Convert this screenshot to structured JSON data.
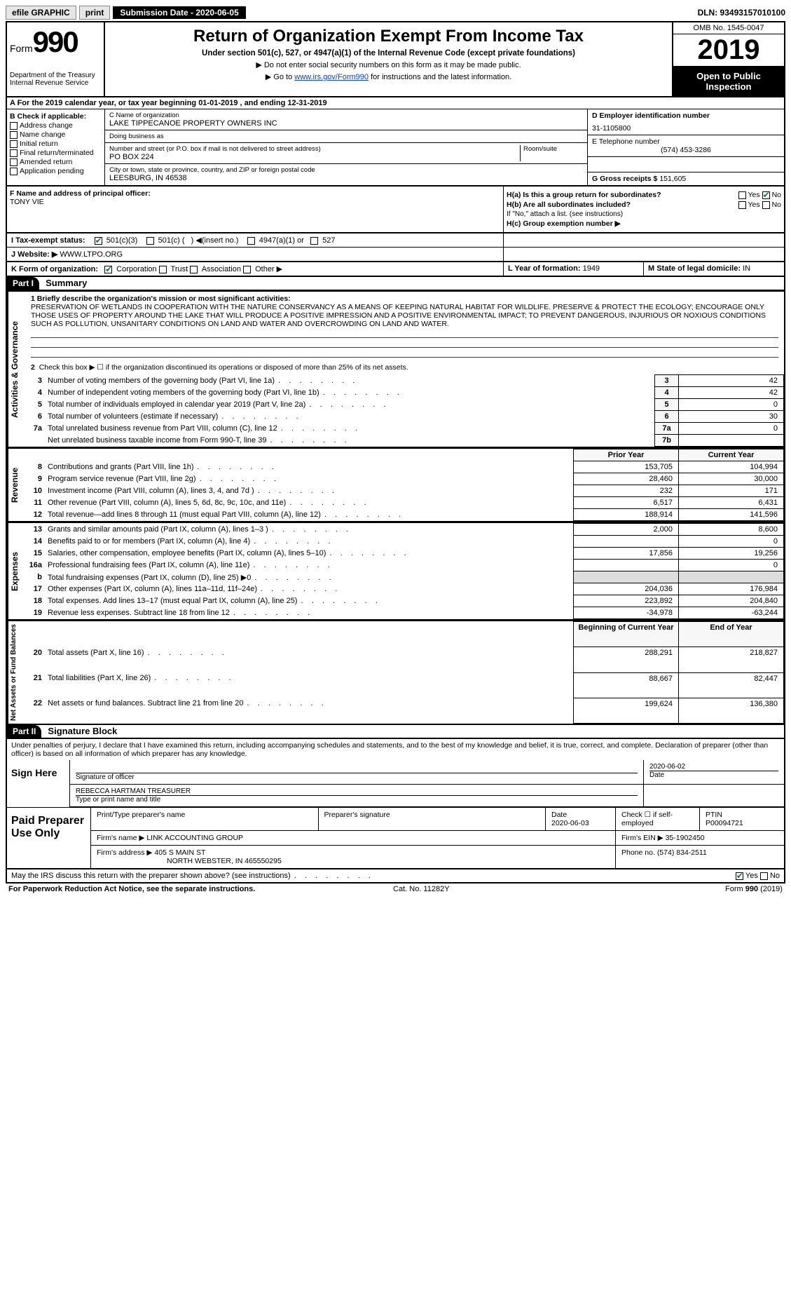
{
  "topbar": {
    "efile": "efile GRAPHIC",
    "print": "print",
    "submission": "Submission Date - 2020-06-05",
    "dln": "DLN: 93493157010100"
  },
  "header": {
    "form_prefix": "Form",
    "form_no": "990",
    "dept": "Department of the Treasury\nInternal Revenue Service",
    "title": "Return of Organization Exempt From Income Tax",
    "sub": "Under section 501(c), 527, or 4947(a)(1) of the Internal Revenue Code (except private foundations)",
    "note1": "▶ Do not enter social security numbers on this form as it may be made public.",
    "note2_pre": "▶ Go to ",
    "note2_link": "www.irs.gov/Form990",
    "note2_post": " for instructions and the latest information.",
    "omb": "OMB No. 1545-0047",
    "year": "2019",
    "open": "Open to Public Inspection"
  },
  "row_a": "A For the 2019 calendar year, or tax year beginning 01-01-2019    , and ending 12-31-2019",
  "col_b": {
    "hdr": "B Check if applicable:",
    "opts": [
      "Address change",
      "Name change",
      "Initial return",
      "Final return/terminated",
      "Amended return",
      "Application pending"
    ]
  },
  "col_c": {
    "name_lbl": "C Name of organization",
    "name": "LAKE TIPPECANOE PROPERTY OWNERS INC",
    "dba_lbl": "Doing business as",
    "dba": "",
    "addr_lbl": "Number and street (or P.O. box if mail is not delivered to street address)",
    "room_lbl": "Room/suite",
    "addr": "PO BOX 224",
    "city_lbl": "City or town, state or province, country, and ZIP or foreign postal code",
    "city": "LEESBURG, IN  46538"
  },
  "col_d": {
    "ein_lbl": "D Employer identification number",
    "ein": "31-1105800",
    "tel_lbl": "E Telephone number",
    "tel": "(574) 453-3286",
    "gross_lbl": "G Gross receipts $",
    "gross": "151,605"
  },
  "row_f": {
    "lbl": "F  Name and address of principal officer:",
    "name": "TONY VIE"
  },
  "row_h": {
    "a": "H(a)  Is this a group return for subordinates?",
    "a_yes": "Yes",
    "a_no_checked": true,
    "no_lbl": "No",
    "b": "H(b)  Are all subordinates included?",
    "b_note": "If \"No,\" attach a list. (see instructions)",
    "c": "H(c)  Group exemption number ▶"
  },
  "row_i": {
    "lbl": "I   Tax-exempt status:",
    "c3_checked": true,
    "opts": "501(c)(3)      501(c) (   ) ◀(insert no.)      4947(a)(1) or      527"
  },
  "row_j": {
    "lbl": "J   Website: ▶",
    "val": "WWW.LTPO.ORG"
  },
  "row_k": {
    "lbl": "K Form of organization:",
    "corp_checked": true,
    "opts": "Corporation      Trust      Association      Other ▶",
    "l_lbl": "L Year of formation:",
    "l_val": "1949",
    "m_lbl": "M State of legal domicile:",
    "m_val": "IN"
  },
  "parts": {
    "i": "Part I",
    "i_title": "Summary",
    "ii": "Part II",
    "ii_title": "Signature Block"
  },
  "summary": {
    "line1_lbl": "1  Briefly describe the organization's mission or most significant activities:",
    "mission": "PRESERVATION OF WETLANDS IN COOPERATION WITH THE NATURE CONSERVANCY AS A MEANS OF KEEPING NATURAL HABITAT FOR WILDLIFE. PRESERVE & PROTECT THE ECOLOGY; ENCOURAGE ONLY THOSE USES OF PROPERTY AROUND THE LAKE THAT WILL PRODUCE A POSITIVE IMPRESSION AND A POSITIVE ENVIRONMENTAL IMPACT; TO PREVENT DANGEROUS, INJURIOUS OR NOXIOUS CONDITIONS SUCH AS POLLUTION, UNSANITARY CONDITIONS ON LAND AND WATER AND OVERCROWDING ON LAND AND WATER.",
    "line2": "Check this box ▶ ☐  if the organization discontinued its operations or disposed of more than 25% of its net assets.",
    "governance_rows": [
      {
        "n": "3",
        "t": "Number of voting members of the governing body (Part VI, line 1a)",
        "box": "3",
        "v": "42"
      },
      {
        "n": "4",
        "t": "Number of independent voting members of the governing body (Part VI, line 1b)",
        "box": "4",
        "v": "42"
      },
      {
        "n": "5",
        "t": "Total number of individuals employed in calendar year 2019 (Part V, line 2a)",
        "box": "5",
        "v": "0"
      },
      {
        "n": "6",
        "t": "Total number of volunteers (estimate if necessary)",
        "box": "6",
        "v": "30"
      },
      {
        "n": "7a",
        "t": "Total unrelated business revenue from Part VIII, column (C), line 12",
        "box": "7a",
        "v": "0"
      },
      {
        "n": "",
        "t": "Net unrelated business taxable income from Form 990-T, line 39",
        "box": "7b",
        "v": ""
      }
    ],
    "col_hdrs": {
      "prior": "Prior Year",
      "current": "Current Year"
    },
    "revenue_rows": [
      {
        "n": "8",
        "t": "Contributions and grants (Part VIII, line 1h)",
        "p": "153,705",
        "c": "104,994"
      },
      {
        "n": "9",
        "t": "Program service revenue (Part VIII, line 2g)",
        "p": "28,460",
        "c": "30,000"
      },
      {
        "n": "10",
        "t": "Investment income (Part VIII, column (A), lines 3, 4, and 7d )",
        "p": "232",
        "c": "171"
      },
      {
        "n": "11",
        "t": "Other revenue (Part VIII, column (A), lines 5, 6d, 8c, 9c, 10c, and 11e)",
        "p": "6,517",
        "c": "6,431"
      },
      {
        "n": "12",
        "t": "Total revenue—add lines 8 through 11 (must equal Part VIII, column (A), line 12)",
        "p": "188,914",
        "c": "141,596"
      }
    ],
    "expense_rows": [
      {
        "n": "13",
        "t": "Grants and similar amounts paid (Part IX, column (A), lines 1–3 )",
        "p": "2,000",
        "c": "8,600"
      },
      {
        "n": "14",
        "t": "Benefits paid to or for members (Part IX, column (A), line 4)",
        "p": "",
        "c": "0"
      },
      {
        "n": "15",
        "t": "Salaries, other compensation, employee benefits (Part IX, column (A), lines 5–10)",
        "p": "17,856",
        "c": "19,256"
      },
      {
        "n": "16a",
        "t": "Professional fundraising fees (Part IX, column (A), line 11e)",
        "p": "",
        "c": "0"
      },
      {
        "n": "b",
        "t": "Total fundraising expenses (Part IX, column (D), line 25) ▶0",
        "p": "",
        "c": "",
        "shade": true
      },
      {
        "n": "17",
        "t": "Other expenses (Part IX, column (A), lines 11a–11d, 11f–24e)",
        "p": "204,036",
        "c": "176,984"
      },
      {
        "n": "18",
        "t": "Total expenses. Add lines 13–17 (must equal Part IX, column (A), line 25)",
        "p": "223,892",
        "c": "204,840"
      },
      {
        "n": "19",
        "t": "Revenue less expenses. Subtract line 18 from line 12",
        "p": "-34,978",
        "c": "-63,244"
      }
    ],
    "net_hdrs": {
      "begin": "Beginning of Current Year",
      "end": "End of Year"
    },
    "net_rows": [
      {
        "n": "20",
        "t": "Total assets (Part X, line 16)",
        "p": "288,291",
        "c": "218,827"
      },
      {
        "n": "21",
        "t": "Total liabilities (Part X, line 26)",
        "p": "88,667",
        "c": "82,447"
      },
      {
        "n": "22",
        "t": "Net assets or fund balances. Subtract line 21 from line 20",
        "p": "199,624",
        "c": "136,380"
      }
    ],
    "vbars": {
      "gov": "Activities & Governance",
      "rev": "Revenue",
      "exp": "Expenses",
      "net": "Net Assets or Fund Balances"
    }
  },
  "sig": {
    "perjury": "Under penalties of perjury, I declare that I have examined this return, including accompanying schedules and statements, and to the best of my knowledge and belief, it is true, correct, and complete. Declaration of preparer (other than officer) is based on all information of which preparer has any knowledge.",
    "sign_here": "Sign Here",
    "sig_officer": "Signature of officer",
    "sig_date": "2020-06-02",
    "date_lbl": "Date",
    "officer_name": "REBECCA HARTMAN TREASURER",
    "type_name_lbl": "Type or print name and title",
    "paid": "Paid Preparer Use Only",
    "prep_name_lbl": "Print/Type preparer's name",
    "prep_sig_lbl": "Preparer's signature",
    "prep_date_lbl": "Date",
    "prep_date": "2020-06-03",
    "self_emp": "Check ☐ if self-employed",
    "ptin_lbl": "PTIN",
    "ptin": "P00094721",
    "firm_name_lbl": "Firm's name   ▶",
    "firm_name": "LINK ACCOUNTING GROUP",
    "firm_ein_lbl": "Firm's EIN ▶",
    "firm_ein": "35-1902450",
    "firm_addr_lbl": "Firm's address ▶",
    "firm_addr1": "405 S MAIN ST",
    "firm_addr2": "NORTH WEBSTER, IN  465550295",
    "phone_lbl": "Phone no.",
    "phone": "(574) 834-2511"
  },
  "footer": {
    "discuss": "May the IRS discuss this return with the preparer shown above? (see instructions)",
    "yes_checked": true,
    "paperwork": "For Paperwork Reduction Act Notice, see the separate instructions.",
    "cat": "Cat. No. 11282Y",
    "form": "Form 990 (2019)"
  }
}
